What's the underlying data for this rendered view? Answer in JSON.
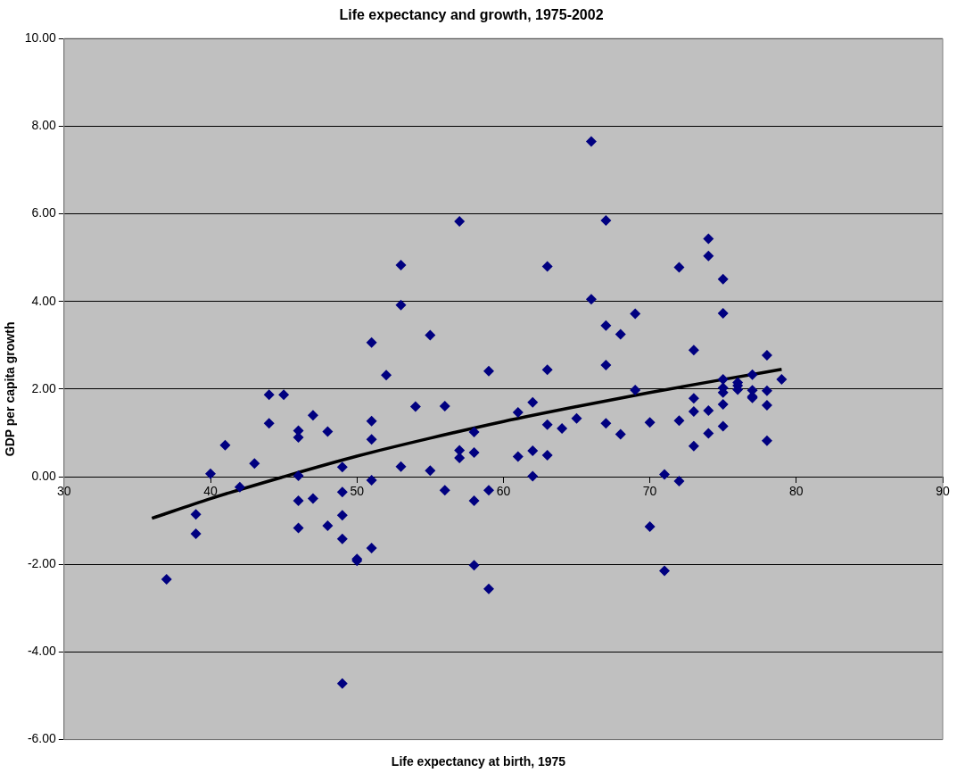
{
  "chart_data": {
    "type": "scatter",
    "title": "Life expectancy and growth, 1975-2002",
    "xlabel": "Life expectancy at birth, 1975",
    "ylabel": "GDP per capita growth",
    "xlim": [
      30,
      90
    ],
    "xticks": [
      30,
      40,
      50,
      60,
      70,
      80,
      90
    ],
    "ylim": [
      -6,
      10
    ],
    "yticks": [
      {
        "value": -6,
        "label": "-6.00"
      },
      {
        "value": -4,
        "label": "-4.00"
      },
      {
        "value": -2,
        "label": "-2.00"
      },
      {
        "value": 0,
        "label": "0.00"
      },
      {
        "value": 2,
        "label": "2.00"
      },
      {
        "value": 4,
        "label": "4.00"
      },
      {
        "value": 6,
        "label": "6.00"
      },
      {
        "value": 8,
        "label": "8.00"
      },
      {
        "value": 10,
        "label": "10.00"
      }
    ],
    "grid": "y",
    "marker": "diamond",
    "series": [
      {
        "type": "scatter",
        "color": "#000080",
        "x": [
          37,
          39,
          39,
          40,
          41,
          42,
          43,
          44,
          44,
          45,
          46,
          46,
          46,
          46,
          46,
          47,
          47,
          48,
          48,
          49,
          49,
          49,
          49,
          49,
          50,
          50,
          51,
          51,
          51,
          51,
          51,
          52,
          53,
          53,
          53,
          54,
          55,
          55,
          56,
          56,
          57,
          57,
          57,
          58,
          58,
          58,
          58,
          59,
          59,
          59,
          61,
          61,
          62,
          62,
          62,
          63,
          63,
          63,
          63,
          64,
          65,
          66,
          66,
          67,
          67,
          67,
          67,
          68,
          68,
          69,
          69,
          70,
          70,
          71,
          71,
          72,
          72,
          72,
          73,
          73,
          73,
          73,
          74,
          74,
          74,
          74,
          75,
          75,
          75,
          75,
          75,
          75,
          75,
          76,
          76,
          76,
          77,
          77,
          77,
          77,
          78,
          78,
          78,
          78,
          79
        ],
        "values": [
          -2.34,
          -0.86,
          -1.3,
          0.07,
          0.72,
          -0.24,
          0.3,
          1.87,
          1.22,
          1.87,
          1.05,
          0.9,
          0.02,
          -0.55,
          -1.17,
          1.4,
          -0.5,
          1.03,
          -1.12,
          0.22,
          -0.35,
          -0.88,
          -1.42,
          -4.72,
          -1.88,
          -1.92,
          3.06,
          1.27,
          0.85,
          -0.08,
          -1.63,
          2.32,
          4.83,
          3.92,
          0.23,
          1.6,
          3.23,
          0.14,
          1.61,
          -0.31,
          5.83,
          0.6,
          0.43,
          1.02,
          0.55,
          -0.55,
          -2.02,
          2.41,
          -0.31,
          -2.56,
          1.47,
          0.46,
          1.7,
          0.59,
          0.01,
          4.8,
          2.44,
          1.19,
          0.49,
          1.1,
          1.33,
          7.65,
          4.05,
          5.85,
          3.45,
          2.55,
          1.22,
          3.25,
          0.97,
          3.72,
          1.98,
          1.24,
          -1.14,
          0.05,
          -2.15,
          4.78,
          1.28,
          -0.1,
          2.89,
          1.79,
          1.49,
          0.7,
          5.43,
          5.04,
          1.51,
          0.99,
          4.51,
          3.73,
          2.22,
          2.03,
          1.92,
          1.65,
          1.15,
          2.15,
          2.08,
          1.99,
          2.33,
          1.97,
          1.83,
          1.8,
          2.77,
          1.96,
          1.63,
          0.82,
          2.22
        ]
      },
      {
        "type": "line",
        "color": "#000000",
        "marker": "none",
        "line_style": "solid",
        "x": [
          36,
          40,
          45,
          50,
          55,
          60,
          65,
          70,
          75,
          79
        ],
        "values": [
          -0.95,
          -0.5,
          0,
          0.47,
          0.88,
          1.26,
          1.6,
          1.92,
          2.22,
          2.45
        ]
      }
    ]
  }
}
